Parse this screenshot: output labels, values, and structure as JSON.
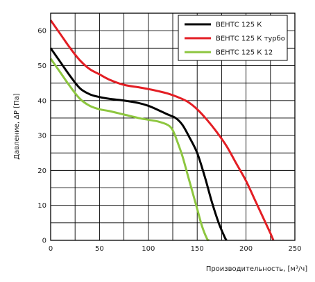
{
  "chart_data": {
    "type": "line",
    "xlabel": "Производительность, [м³/ч]",
    "ylabel": "Давление, ΔP [Па]",
    "xlim": [
      0,
      250
    ],
    "ylim": [
      0,
      65
    ],
    "x_ticks": [
      0,
      50,
      100,
      150,
      200,
      250
    ],
    "y_ticks": [
      0,
      10,
      20,
      30,
      40,
      50,
      60
    ],
    "grid": true,
    "legend_position": "top-right",
    "series": [
      {
        "name": "ВЕНТС 125 К",
        "color": "#000000",
        "points": [
          [
            0,
            55
          ],
          [
            10,
            51
          ],
          [
            20,
            47
          ],
          [
            30,
            43.5
          ],
          [
            40,
            41.8
          ],
          [
            50,
            41
          ],
          [
            60,
            40.5
          ],
          [
            75,
            40
          ],
          [
            90,
            39.3
          ],
          [
            100,
            38.5
          ],
          [
            110,
            37.3
          ],
          [
            120,
            36
          ],
          [
            128,
            35
          ],
          [
            135,
            33
          ],
          [
            142,
            29.5
          ],
          [
            150,
            25
          ],
          [
            158,
            18
          ],
          [
            165,
            11
          ],
          [
            172,
            5
          ],
          [
            178,
            1
          ],
          [
            180,
            0
          ]
        ]
      },
      {
        "name": "ВЕНТС 125 К турбо",
        "color": "#e31e24",
        "points": [
          [
            0,
            63
          ],
          [
            10,
            59
          ],
          [
            20,
            55
          ],
          [
            30,
            51.5
          ],
          [
            40,
            49
          ],
          [
            50,
            47.5
          ],
          [
            60,
            46
          ],
          [
            75,
            44.5
          ],
          [
            90,
            43.8
          ],
          [
            100,
            43.3
          ],
          [
            110,
            42.7
          ],
          [
            120,
            42
          ],
          [
            130,
            41
          ],
          [
            140,
            39.7
          ],
          [
            150,
            37.5
          ],
          [
            160,
            34.5
          ],
          [
            170,
            31
          ],
          [
            180,
            27
          ],
          [
            190,
            22
          ],
          [
            200,
            17
          ],
          [
            210,
            11
          ],
          [
            220,
            5
          ],
          [
            225,
            2
          ],
          [
            228,
            0
          ]
        ]
      },
      {
        "name": "ВЕНТС 125 К 12",
        "color": "#8dc63f",
        "points": [
          [
            0,
            52
          ],
          [
            10,
            48
          ],
          [
            20,
            44
          ],
          [
            30,
            40.5
          ],
          [
            40,
            38.5
          ],
          [
            50,
            37.5
          ],
          [
            60,
            37
          ],
          [
            75,
            36
          ],
          [
            90,
            35
          ],
          [
            100,
            34.5
          ],
          [
            110,
            34
          ],
          [
            120,
            33
          ],
          [
            125,
            31.5
          ],
          [
            130,
            28
          ],
          [
            135,
            24
          ],
          [
            140,
            19
          ],
          [
            145,
            14
          ],
          [
            150,
            9
          ],
          [
            155,
            4
          ],
          [
            160,
            0.5
          ],
          [
            162,
            0
          ]
        ]
      }
    ]
  }
}
